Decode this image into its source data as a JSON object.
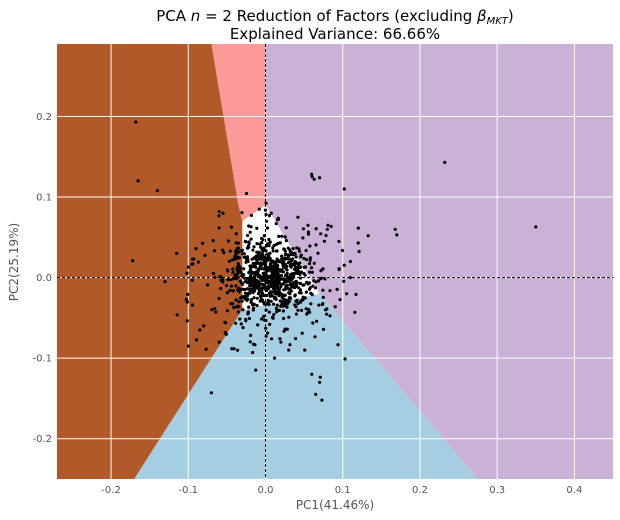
{
  "chart_data": {
    "type": "scatter",
    "title_line1_prefix": "PCA ",
    "title_n": "n",
    "title_eq": " = 2 Reduction of Factors (excluding ",
    "title_beta": "β",
    "title_beta_sub": "MKT",
    "title_line1_suffix": ")",
    "title_line2": "Explained Variance: 66.66%",
    "xlabel": "PC1(41.46%)",
    "ylabel": "PC2(25.19%)",
    "xlim": [
      -0.27,
      0.45
    ],
    "ylim": [
      -0.25,
      0.29
    ],
    "xticks": [
      -0.2,
      -0.1,
      0.0,
      0.1,
      0.2,
      0.3,
      0.4
    ],
    "yticks": [
      -0.2,
      -0.1,
      0.0,
      0.1,
      0.2
    ],
    "grid": true,
    "reference_lines": {
      "x": 0.0,
      "y": 0.0,
      "style": "dashed"
    },
    "regions": [
      {
        "color": "#b15928",
        "polygon": [
          [
            -0.27,
            0.29
          ],
          [
            -0.07,
            0.29
          ],
          [
            -0.035,
            0.09
          ],
          [
            -0.03,
            0.07
          ],
          [
            -0.03,
            -0.04
          ],
          [
            -0.17,
            -0.25
          ],
          [
            -0.27,
            -0.25
          ]
        ]
      },
      {
        "color": "#fb9a99",
        "polygon": [
          [
            -0.07,
            0.29
          ],
          [
            0.0,
            0.29
          ],
          [
            0.0,
            0.09
          ],
          [
            -0.03,
            0.07
          ],
          [
            -0.035,
            0.09
          ]
        ]
      },
      {
        "color": "#cab2d6",
        "polygon": [
          [
            0.0,
            0.29
          ],
          [
            0.45,
            0.29
          ],
          [
            0.45,
            -0.25
          ],
          [
            0.275,
            -0.25
          ],
          [
            0.07,
            -0.02
          ],
          [
            0.0,
            0.09
          ]
        ]
      },
      {
        "color": "#a6cee3",
        "polygon": [
          [
            -0.03,
            -0.04
          ],
          [
            0.07,
            -0.02
          ],
          [
            0.275,
            -0.25
          ],
          [
            -0.17,
            -0.25
          ]
        ]
      }
    ],
    "points_color": "#000000",
    "points_outliers": [
      [
        -0.168,
        0.193
      ],
      [
        -0.165,
        0.12
      ],
      [
        -0.14,
        0.108
      ],
      [
        -0.172,
        0.021
      ],
      [
        0.232,
        0.143
      ],
      [
        0.35,
        0.063
      ],
      [
        0.168,
        0.06
      ],
      [
        0.17,
        0.053
      ],
      [
        0.133,
        0.052
      ],
      [
        0.102,
        0.11
      ],
      [
        0.07,
        0.124
      ],
      [
        0.063,
        0.122
      ],
      [
        0.103,
        -0.101
      ],
      [
        0.07,
        -0.13
      ],
      [
        0.065,
        -0.145
      ],
      [
        0.073,
        -0.152
      ],
      [
        -0.07,
        -0.143
      ],
      [
        -0.1,
        -0.085
      ],
      [
        -0.115,
        0.03
      ],
      [
        -0.13,
        -0.005
      ],
      [
        -0.06,
        0.082
      ],
      [
        -0.055,
        0.08
      ],
      [
        -0.008,
        0.085
      ],
      [
        0.005,
        0.077
      ],
      [
        0.042,
        0.075
      ],
      [
        0.055,
        0.065
      ],
      [
        0.08,
        0.06
      ],
      [
        0.095,
        0.045
      ],
      [
        0.12,
        0.043
      ],
      [
        0.11,
        0.02
      ],
      [
        0.11,
        0.0
      ],
      [
        0.105,
        -0.02
      ],
      [
        -0.09,
        0.036
      ],
      [
        -0.1,
        0.013
      ],
      [
        -0.085,
        -0.065
      ],
      [
        -0.08,
        -0.06
      ],
      [
        -0.06,
        -0.08
      ],
      [
        0.02,
        -0.08
      ],
      [
        0.03,
        -0.09
      ],
      [
        0.06,
        -0.12
      ]
    ],
    "cluster": {
      "center": [
        0.005,
        0.0
      ],
      "sx": 0.025,
      "sy": 0.022,
      "count": 900
    }
  }
}
